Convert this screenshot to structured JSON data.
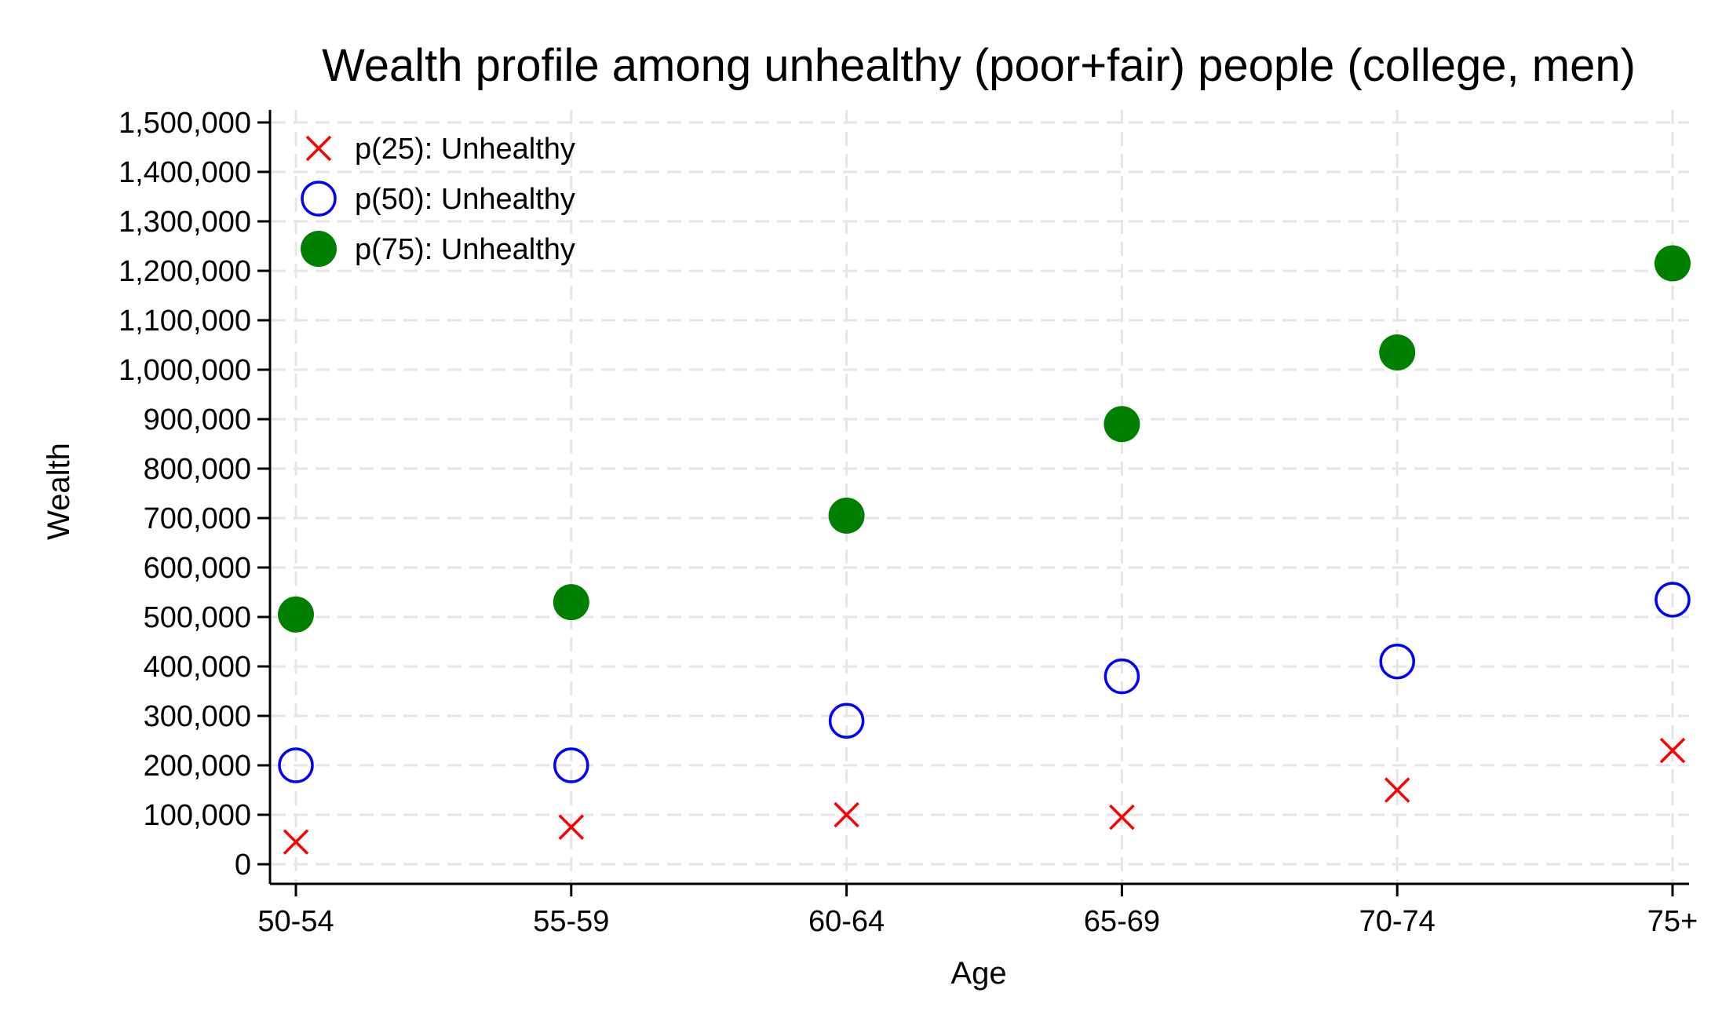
{
  "chart_data": {
    "type": "scatter",
    "title": "Wealth profile among unhealthy (poor+fair) people (college, men)",
    "xlabel": "Age",
    "ylabel": "Wealth",
    "categories": [
      "50-54",
      "55-59",
      "60-64",
      "65-69",
      "70-74",
      "75+"
    ],
    "ylim": [
      0,
      1500000
    ],
    "y_ticks": [
      0,
      100000,
      200000,
      300000,
      400000,
      500000,
      600000,
      700000,
      800000,
      900000,
      1000000,
      1100000,
      1200000,
      1300000,
      1400000,
      1500000
    ],
    "y_tick_labels": [
      "0",
      "100,000",
      "200,000",
      "300,000",
      "400,000",
      "500,000",
      "600,000",
      "700,000",
      "800,000",
      "900,000",
      "1,000,000",
      "1,100,000",
      "1,200,000",
      "1,300,000",
      "1,400,000",
      "1,500,000"
    ],
    "grid": true,
    "legend_position": "top-left",
    "series": [
      {
        "name": "p(25): Unhealthy",
        "marker": "x",
        "color": "#ff0000",
        "values": [
          45000,
          75000,
          100000,
          95000,
          150000,
          230000
        ]
      },
      {
        "name": "p(50): Unhealthy",
        "marker": "hollow-circle",
        "color": "#0000ff",
        "values": [
          200000,
          200000,
          290000,
          380000,
          410000,
          535000
        ]
      },
      {
        "name": "p(75): Unhealthy",
        "marker": "filled-circle",
        "color": "#008000",
        "values": [
          505000,
          530000,
          705000,
          890000,
          1035000,
          1215000
        ]
      }
    ]
  }
}
